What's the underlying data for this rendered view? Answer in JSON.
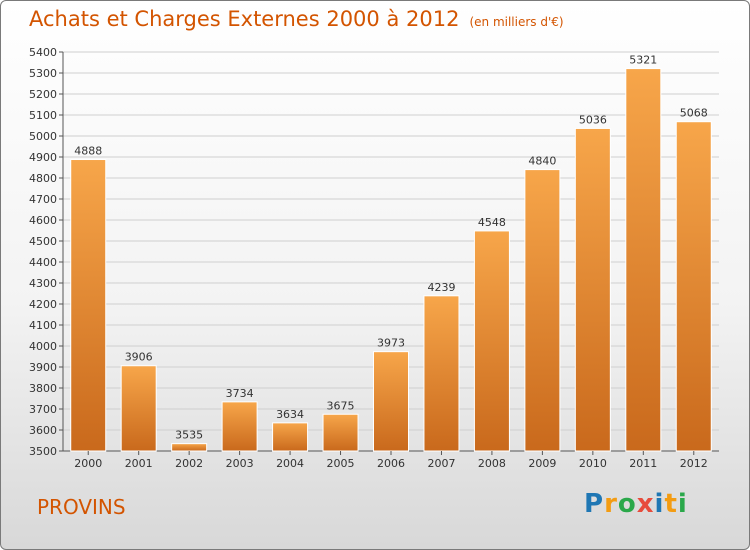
{
  "title": "Achats et Charges Externes 2000 à 2012",
  "unit": "(en milliers d'€)",
  "city": "PROVINS",
  "logo": {
    "text": "Proxiti",
    "colors": [
      "#1f77b4",
      "#f39c12",
      "#2aa84a",
      "#e74c3c",
      "#1f77b4",
      "#f39c12",
      "#2aa84a"
    ]
  },
  "colors": {
    "bar_top": "#f7a64a",
    "bar_bottom": "#c9691c",
    "text_accent": "#d35400",
    "grid": "#cfcfcf"
  },
  "chart_data": {
    "type": "bar",
    "categories": [
      "2000",
      "2001",
      "2002",
      "2003",
      "2004",
      "2005",
      "2006",
      "2007",
      "2008",
      "2009",
      "2010",
      "2011",
      "2012"
    ],
    "values": [
      4888,
      3906,
      3535,
      3734,
      3634,
      3675,
      3973,
      4239,
      4548,
      4840,
      5036,
      5321,
      5068
    ],
    "yticks": [
      3500,
      3600,
      3700,
      3800,
      3900,
      4000,
      4100,
      4200,
      4300,
      4400,
      4500,
      4600,
      4700,
      4800,
      4900,
      5000,
      5100,
      5200,
      5300,
      5400
    ],
    "ylim": [
      3500,
      5400
    ],
    "grid": true,
    "xlabel": "",
    "ylabel": ""
  }
}
